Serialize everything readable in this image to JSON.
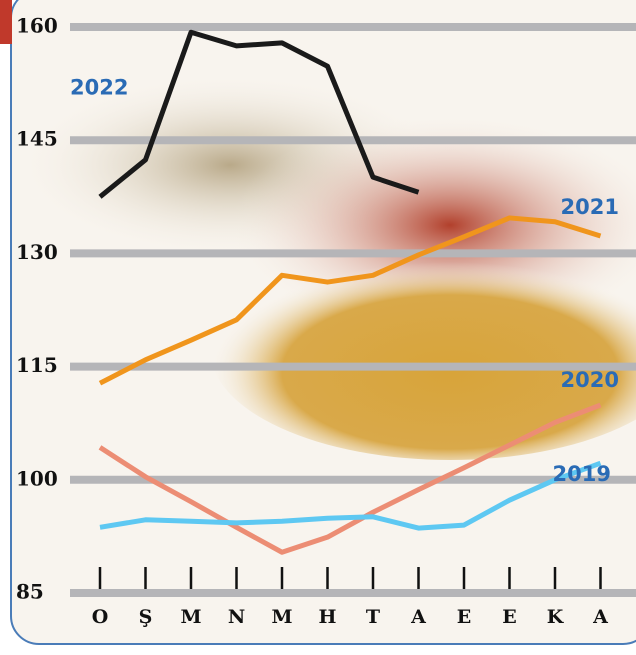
{
  "chart_data": {
    "type": "line",
    "categories": [
      "O",
      "Ş",
      "M",
      "N",
      "M",
      "H",
      "T",
      "A",
      "E",
      "E",
      "K",
      "A"
    ],
    "series": [
      {
        "name": "2022",
        "color": "#1a1a1a",
        "values": [
          137.5,
          142.4,
          159.3,
          157.5,
          157.9,
          154.8,
          140.1,
          138.1,
          null,
          null,
          null,
          null
        ]
      },
      {
        "name": "2021",
        "color": "#f0951c",
        "values": [
          112.8,
          115.9,
          118.5,
          121.2,
          127.1,
          126.2,
          127.1,
          129.8,
          132.2,
          134.7,
          134.2,
          132.3
        ]
      },
      {
        "name": "2020",
        "color": "#ec8d74",
        "values": [
          104.3,
          100.4,
          97.1,
          93.7,
          90.4,
          92.4,
          95.7,
          98.7,
          101.6,
          104.6,
          107.6,
          109.9
        ]
      },
      {
        "name": "2019",
        "color": "#5ec8f2",
        "values": [
          93.7,
          94.7,
          94.5,
          94.3,
          94.5,
          94.9,
          95.1,
          93.6,
          94.0,
          97.3,
          100.0,
          102.2
        ]
      }
    ],
    "ylim": [
      85,
      160
    ],
    "yticks": [
      85,
      100,
      115,
      130,
      145,
      160
    ],
    "grid": true
  }
}
